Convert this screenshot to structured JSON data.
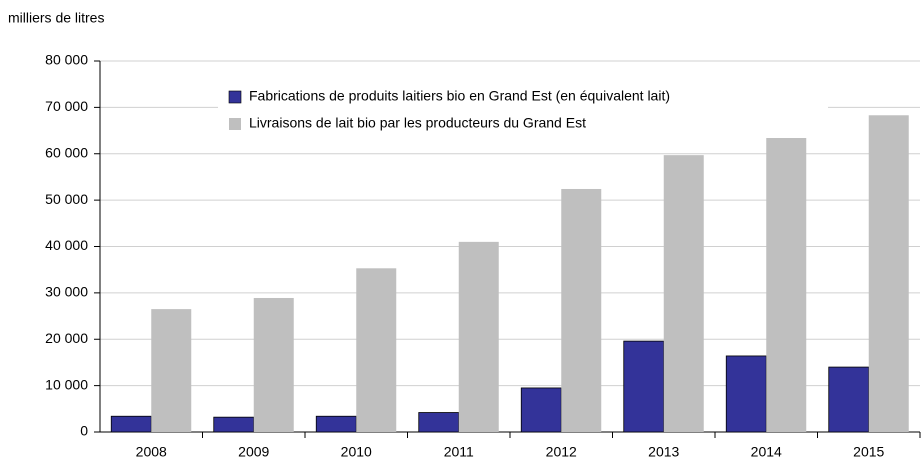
{
  "chart_data": {
    "type": "bar",
    "y_axis_label": "milliers de litres",
    "categories": [
      "2008",
      "2009",
      "2010",
      "2011",
      "2012",
      "2013",
      "2014",
      "2015"
    ],
    "series": [
      {
        "name": "Fabrications de produits laitiers bio en Grand Est (en équivalent lait)",
        "color": "#333399",
        "values": [
          3400,
          3200,
          3400,
          4200,
          9500,
          19600,
          16400,
          14000
        ]
      },
      {
        "name": "Livraisons de lait bio par les producteurs du Grand Est",
        "color": "#bfbfbf",
        "values": [
          26500,
          28900,
          35300,
          41000,
          52400,
          59700,
          63600,
          68300
        ]
      }
    ],
    "ylim": [
      0,
      80000
    ],
    "yticks": [
      0,
      {
        "value": 10000,
        "label": "10 000"
      },
      {
        "value": 20000,
        "label": "20 000"
      },
      {
        "value": 30000,
        "label": "30 000"
      },
      {
        "value": 40000,
        "label": "40 000"
      },
      {
        "value": 50000,
        "label": "50 000"
      },
      {
        "value": 60000,
        "label": "60 000"
      },
      {
        "value": 70000,
        "label": "70 000"
      },
      {
        "value": 80000,
        "label": "80 000"
      }
    ],
    "grid": true,
    "legend": "top"
  }
}
